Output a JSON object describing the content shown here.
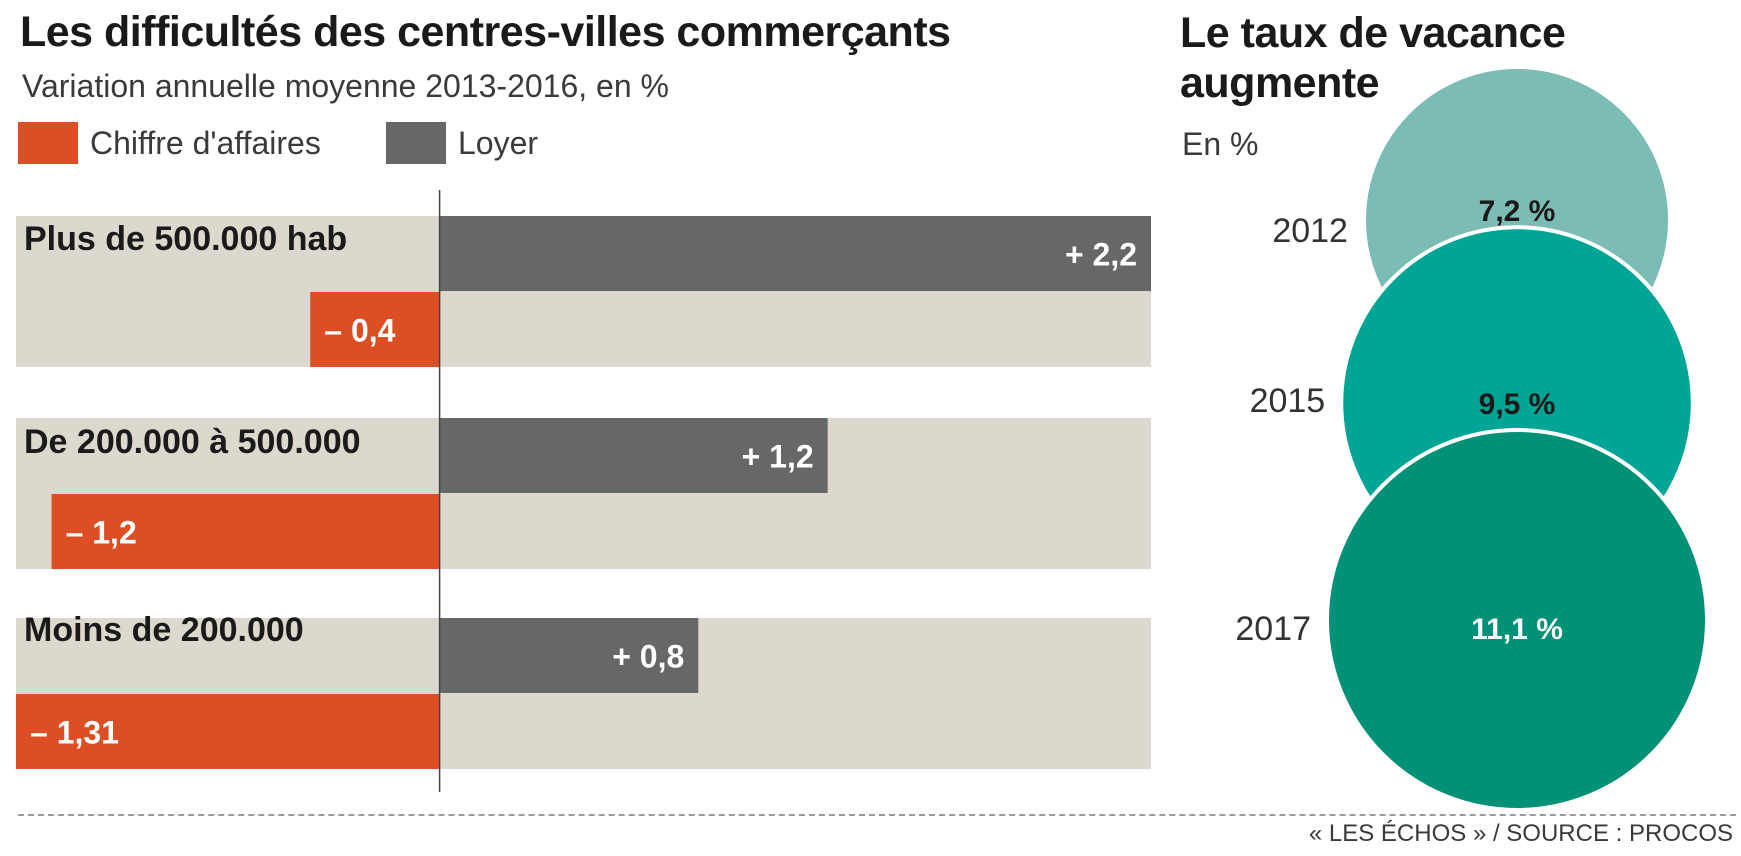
{
  "title": "Les difficultés des centres-villes commerçants",
  "subtitle": "Variation annuelle moyenne 2013-2016, en %",
  "legend": [
    {
      "label": "Chiffre d'affaires",
      "color": "#dd4e25"
    },
    {
      "label": "Loyer",
      "color": "#666866"
    }
  ],
  "chart_data": [
    {
      "type": "bar",
      "orientation": "horizontal",
      "title": "Les difficultés des centres-villes commerçants",
      "subtitle": "Variation annuelle moyenne 2013-2016, en %",
      "categories": [
        "Plus de 500.000 hab",
        "De 200.000 à 500.000",
        "Moins de 200.000"
      ],
      "series": [
        {
          "name": "Loyer",
          "color": "#666868",
          "values": [
            2.2,
            1.2,
            0.8
          ],
          "labels": [
            "+ 2,2",
            "+ 1,2",
            "+ 0,8"
          ]
        },
        {
          "name": "Chiffre d'affaires",
          "color": "#dd4e25",
          "values": [
            -0.4,
            -1.2,
            -1.31
          ],
          "labels": [
            "– 0,4",
            "– 1,2",
            "– 1,31"
          ]
        }
      ],
      "xlim": [
        -1.31,
        2.2
      ],
      "row_background": "#dcd8cd",
      "grid": false,
      "legend": "top-left"
    },
    {
      "type": "bubble",
      "title": "Le taux de vacance augmente",
      "unit": "En %",
      "categories": [
        "2012",
        "2015",
        "2017"
      ],
      "values": [
        7.2,
        9.5,
        11.1
      ],
      "labels": [
        "7,2 %",
        "9,5 %",
        "11,1 %"
      ],
      "colors": [
        "#7bbcb4",
        "#00a596",
        "#009177"
      ]
    }
  ],
  "right_panel": {
    "title_line1": "Le taux de vacance",
    "title_line2": "augmente",
    "unit": "En %"
  },
  "source": "« LES ÉCHOS » / SOURCE : PROCOS"
}
